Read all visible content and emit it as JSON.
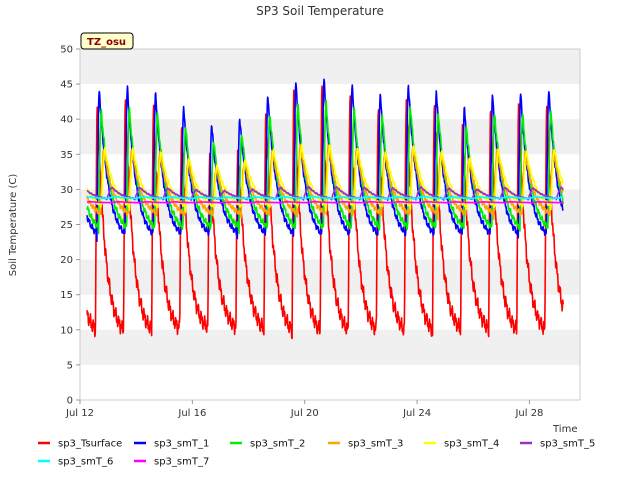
{
  "chart_data": {
    "type": "line",
    "title": "SP3 Soil Temperature",
    "xlabel": "Time",
    "ylabel": "Soil Temperature (C)",
    "badge": "TZ_osu",
    "xlim": [
      0,
      17.8
    ],
    "ylim": [
      0,
      50
    ],
    "x_unit": "days since Jul 12",
    "yticks": [
      0,
      5,
      10,
      15,
      20,
      25,
      30,
      35,
      40,
      45,
      50
    ],
    "xticks": [
      {
        "day": 0,
        "label": "Jul 12"
      },
      {
        "day": 4,
        "label": "Jul 16"
      },
      {
        "day": 8,
        "label": "Jul 20"
      },
      {
        "day": 12,
        "label": "Jul 24"
      },
      {
        "day": 16,
        "label": "Jul 28"
      }
    ],
    "grid": "horizontal bands",
    "legend_position": "bottom",
    "series": [
      {
        "name": "sp3_Tsurface",
        "color": "#ff0000",
        "params": {
          "base": 11.5,
          "amp": 34,
          "phase": 0.55,
          "width": 0.07,
          "decay": 0.28,
          "noise": 1.2
        }
      },
      {
        "name": "sp3_smT_1",
        "color": "#0000ff",
        "params": {
          "base": 24.2,
          "amp": 22,
          "phase": 0.6,
          "width": 0.09,
          "decay": 0.32,
          "noise": 0.5
        }
      },
      {
        "name": "sp3_smT_2",
        "color": "#00ee00",
        "params": {
          "base": 24.8,
          "amp": 18,
          "phase": 0.66,
          "width": 0.1,
          "decay": 0.34,
          "noise": 0.5
        }
      },
      {
        "name": "sp3_smT_3",
        "color": "#ffa500",
        "params": {
          "base": 26.5,
          "amp": 10,
          "phase": 0.73,
          "width": 0.12,
          "decay": 0.36,
          "noise": 0.4
        }
      },
      {
        "name": "sp3_smT_4",
        "color": "#ffff00",
        "params": {
          "base": 27.5,
          "amp": 9,
          "phase": 0.76,
          "width": 0.13,
          "decay": 0.38,
          "noise": 0.3
        }
      },
      {
        "name": "sp3_smT_5",
        "color": "#9932cc",
        "params": {
          "base": 28.6,
          "amp": 1.8,
          "phase": 0.95,
          "width": 0.2,
          "decay": 0.4,
          "noise": 0.1
        }
      },
      {
        "name": "sp3_smT_6",
        "color": "#00ffff",
        "params": {
          "base": 28.7,
          "amp": 0.3,
          "phase": 1.0,
          "width": 0.25,
          "decay": 0.4,
          "noise": 0.05
        }
      },
      {
        "name": "sp3_smT_7",
        "color": "#ff00ff",
        "params": {
          "base": 28.1,
          "amp": 0.15,
          "phase": 1.1,
          "width": 0.3,
          "decay": 0.4,
          "noise": 0.02
        }
      }
    ],
    "trend": [
      [
        0,
        26
      ],
      [
        1,
        26.5
      ],
      [
        2,
        26.5
      ],
      [
        3,
        26
      ],
      [
        4,
        25
      ],
      [
        5,
        24
      ],
      [
        6,
        25
      ],
      [
        7,
        26.5
      ],
      [
        8,
        27
      ],
      [
        9,
        27
      ],
      [
        10,
        26.5
      ],
      [
        11,
        26
      ],
      [
        12,
        27
      ],
      [
        13,
        26
      ],
      [
        14,
        25
      ],
      [
        15,
        26.5
      ],
      [
        16,
        26
      ],
      [
        17,
        26.5
      ],
      [
        18,
        27
      ]
    ]
  }
}
